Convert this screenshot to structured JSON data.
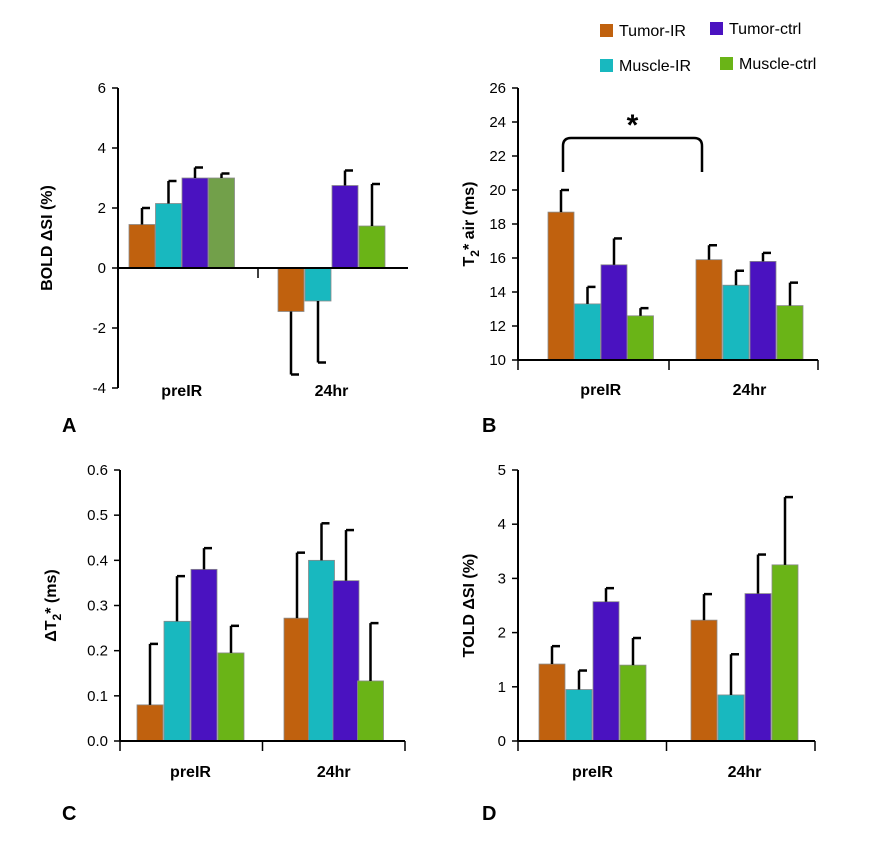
{
  "legend": [
    {
      "name": "Tumor-IR",
      "color": "#c0610e"
    },
    {
      "name": "Tumor-ctrl",
      "color": "#4a12c0"
    },
    {
      "name": "Muscle-IR",
      "color": "#18b8bf"
    },
    {
      "name": "Muscle-ctrl",
      "color": "#6ab417"
    }
  ],
  "chart_data": [
    {
      "panel": "A",
      "type": "bar",
      "ylabel": "BOLD ΔSI (%)",
      "categories": [
        "preIR",
        "24hr"
      ],
      "ylim": [
        -4,
        6
      ],
      "yticks": [
        -4,
        -2,
        0,
        2,
        4,
        6
      ],
      "series": [
        {
          "name": "Tumor-IR",
          "values": [
            1.45,
            -1.45
          ],
          "errors": [
            0.55,
            2.1
          ],
          "color": "#c0610e"
        },
        {
          "name": "Muscle-IR",
          "values": [
            2.15,
            -1.1
          ],
          "errors": [
            0.75,
            2.05
          ],
          "color": "#18b8bf"
        },
        {
          "name": "Tumor-ctrl",
          "values": [
            3.0,
            2.75
          ],
          "errors": [
            0.35,
            0.5
          ],
          "color": "#4a12c0"
        },
        {
          "name": "Muscle-ctrl",
          "values": [
            3.0,
            1.4
          ],
          "errors": [
            0.15,
            1.4
          ],
          "color": "#6ab417",
          "colors": [
            "#72a04a",
            "#6ab417"
          ]
        }
      ]
    },
    {
      "panel": "B",
      "type": "bar",
      "ylabel": "T2* air (ms)",
      "categories": [
        "preIR",
        "24hr"
      ],
      "ylim": [
        10,
        26
      ],
      "yticks": [
        10,
        12,
        14,
        16,
        18,
        20,
        22,
        24,
        26
      ],
      "series": [
        {
          "name": "Tumor-IR",
          "values": [
            18.7,
            15.9
          ],
          "errors": [
            1.3,
            0.85
          ],
          "color": "#c0610e"
        },
        {
          "name": "Muscle-IR",
          "values": [
            13.3,
            14.4
          ],
          "errors": [
            1.0,
            0.85
          ],
          "color": "#18b8bf"
        },
        {
          "name": "Tumor-ctrl",
          "values": [
            15.6,
            15.8
          ],
          "errors": [
            1.55,
            0.5
          ],
          "color": "#4a12c0"
        },
        {
          "name": "Muscle-ctrl",
          "values": [
            12.6,
            13.2
          ],
          "errors": [
            0.45,
            1.35
          ],
          "color": "#6ab417"
        }
      ],
      "annotation": {
        "text": "*",
        "from": "preIR",
        "to": "24hr"
      }
    },
    {
      "panel": "C",
      "type": "bar",
      "ylabel": "ΔT2* (ms)",
      "categories": [
        "preIR",
        "24hr"
      ],
      "ylim": [
        0,
        0.6
      ],
      "yticks": [
        0.0,
        0.1,
        0.2,
        0.3,
        0.4,
        0.5,
        0.6
      ],
      "series": [
        {
          "name": "Tumor-IR",
          "values": [
            0.08,
            0.272
          ],
          "errors": [
            0.135,
            0.145
          ],
          "color": "#c0610e"
        },
        {
          "name": "Muscle-IR",
          "values": [
            0.265,
            0.4
          ],
          "errors": [
            0.1,
            0.082
          ],
          "color": "#18b8bf"
        },
        {
          "name": "Tumor-ctrl",
          "values": [
            0.38,
            0.355
          ],
          "errors": [
            0.047,
            0.112
          ],
          "color": "#4a12c0"
        },
        {
          "name": "Muscle-ctrl",
          "values": [
            0.195,
            0.133
          ],
          "errors": [
            0.06,
            0.128
          ],
          "color": "#6ab417"
        }
      ]
    },
    {
      "panel": "D",
      "type": "bar",
      "ylabel": "TOLD ΔSI (%)",
      "categories": [
        "preIR",
        "24hr"
      ],
      "ylim": [
        0,
        5
      ],
      "yticks": [
        0,
        1,
        2,
        3,
        4,
        5
      ],
      "series": [
        {
          "name": "Tumor-IR",
          "values": [
            1.42,
            2.23
          ],
          "errors": [
            0.33,
            0.48
          ],
          "color": "#c0610e"
        },
        {
          "name": "Muscle-IR",
          "values": [
            0.95,
            0.85
          ],
          "errors": [
            0.35,
            0.75
          ],
          "color": "#18b8bf"
        },
        {
          "name": "Tumor-ctrl",
          "values": [
            2.57,
            2.72
          ],
          "errors": [
            0.25,
            0.72
          ],
          "color": "#4a12c0"
        },
        {
          "name": "Muscle-ctrl",
          "values": [
            1.4,
            3.25
          ],
          "errors": [
            0.5,
            1.25
          ],
          "color": "#6ab417"
        }
      ]
    }
  ]
}
